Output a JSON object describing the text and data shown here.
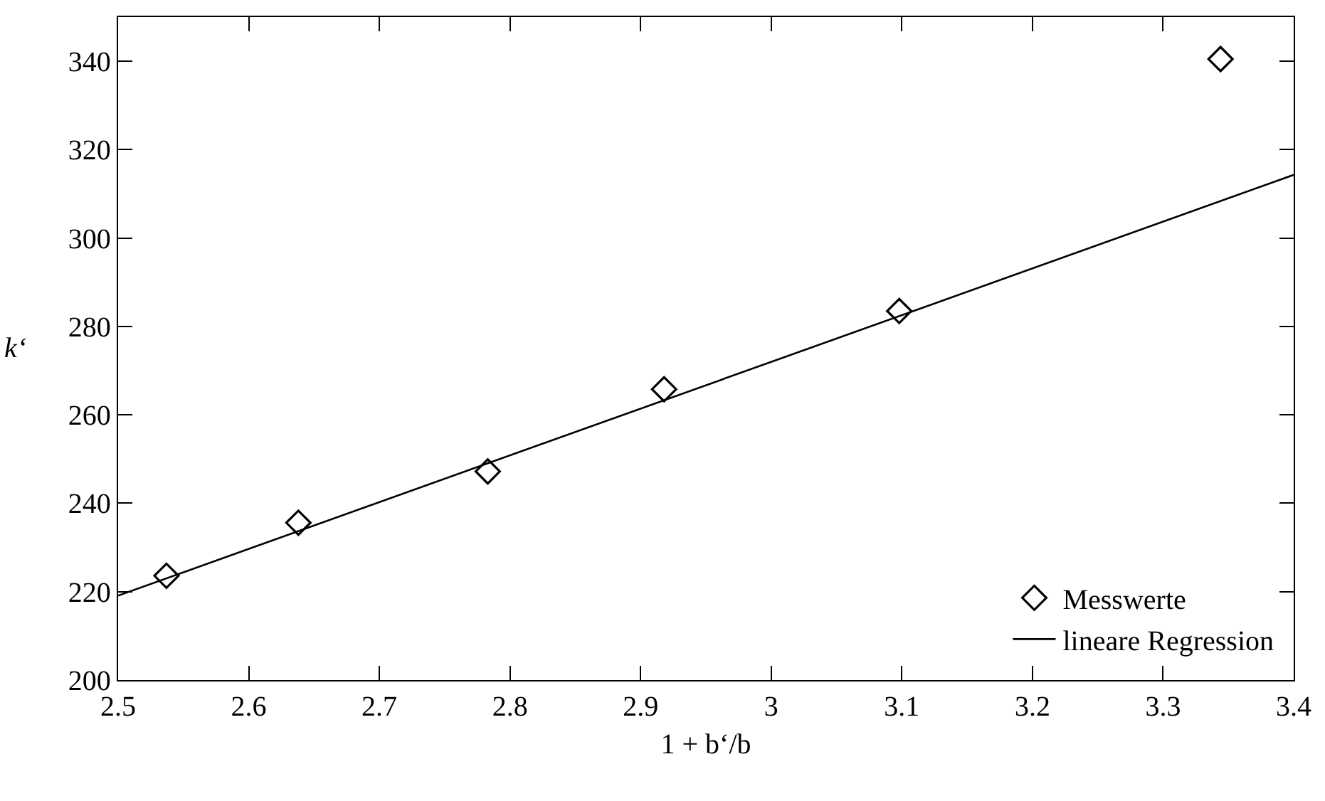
{
  "chart_data": {
    "type": "scatter",
    "xlabel": "1 + b‘/b",
    "ylabel": "k‘",
    "series": [
      {
        "name": "Messwerte",
        "color": "#000000",
        "marker": "diamond",
        "x": [
          2.537,
          2.638,
          2.783,
          2.918,
          3.098,
          3.344
        ],
        "values": [
          223.6,
          235.6,
          247.2,
          265.8,
          283.5,
          340.5
        ]
      },
      {
        "name": "lineare Regression",
        "type": "line",
        "color": "#000000",
        "marker": "none",
        "line_style": "solid",
        "x": [
          2.5,
          3.4
        ],
        "values": [
          219.1,
          314.3
        ]
      }
    ],
    "xlim": [
      2.5,
      3.4
    ],
    "xticks": [
      2.5,
      2.6,
      2.7,
      2.8,
      2.9,
      3,
      3.1,
      3.2,
      3.3,
      3.4
    ],
    "ylim": [
      200,
      350
    ],
    "yticks": [
      200,
      220,
      240,
      260,
      280,
      300,
      320,
      340
    ],
    "grid": false,
    "legend": "bottom right"
  }
}
